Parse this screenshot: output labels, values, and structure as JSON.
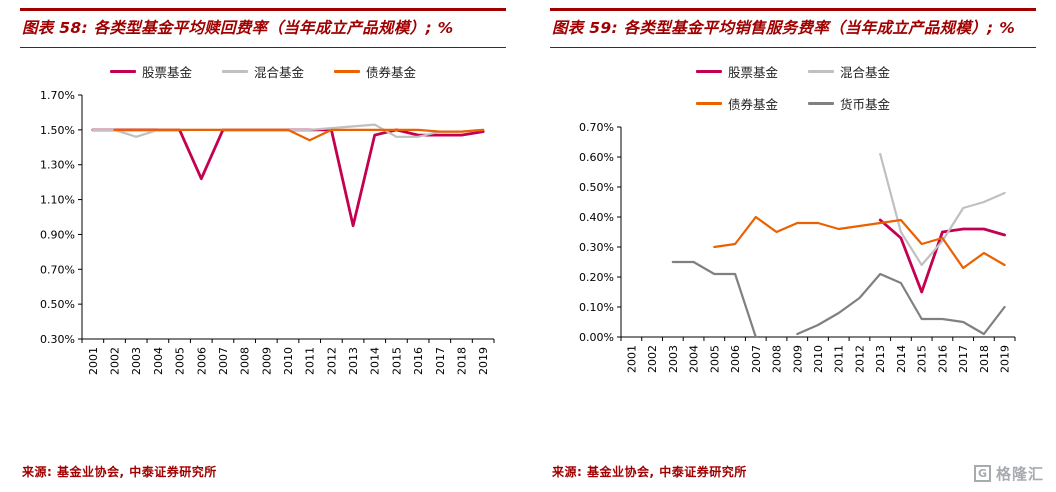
{
  "page": {
    "colors": {
      "accent": "#A00000",
      "stock": "#C40050",
      "hybrid": "#C0C0C0",
      "bond": "#EB6100",
      "money": "#808080"
    },
    "watermark": {
      "logo_letter": "G",
      "brand": "格隆汇"
    }
  },
  "panels": [
    {
      "title": "图表 58: 各类型基金平均赎回费率（当年成立产品规模）; %",
      "source": "来源: 基金业协会, 中泰证券研究所"
    },
    {
      "title": "图表 59: 各类型基金平均销售服务费率（当年成立产品规模）; %",
      "source": "来源: 基金业协会, 中泰证券研究所"
    }
  ],
  "chart_data": [
    {
      "type": "line",
      "title": "各类型基金平均赎回费率（当年成立产品规模）; %",
      "categories": [
        "2001",
        "2002",
        "2003",
        "2004",
        "2005",
        "2006",
        "2007",
        "2008",
        "2009",
        "2010",
        "2011",
        "2012",
        "2013",
        "2014",
        "2015",
        "2016",
        "2017",
        "2018",
        "2019"
      ],
      "series": [
        {
          "name": "股票基金",
          "color": "#C40050",
          "width": 2.8,
          "values": [
            1.5,
            1.5,
            1.5,
            1.5,
            1.5,
            1.22,
            1.5,
            1.5,
            1.5,
            1.5,
            1.5,
            1.5,
            0.95,
            1.47,
            1.5,
            1.47,
            1.47,
            1.47,
            1.49
          ]
        },
        {
          "name": "混合基金",
          "color": "#C0C0C0",
          "width": 2.2,
          "values": [
            1.5,
            1.5,
            1.46,
            1.5,
            1.5,
            1.5,
            1.5,
            1.5,
            1.5,
            1.5,
            1.5,
            1.51,
            1.52,
            1.53,
            1.46,
            1.46,
            1.49,
            1.49,
            1.5
          ]
        },
        {
          "name": "债券基金",
          "color": "#EB6100",
          "width": 2.2,
          "values": [
            null,
            1.5,
            1.5,
            1.5,
            1.5,
            1.5,
            1.5,
            1.5,
            1.5,
            1.5,
            1.44,
            1.5,
            1.5,
            1.5,
            1.5,
            1.5,
            1.49,
            1.49,
            1.5
          ]
        }
      ],
      "ylim": [
        0.3,
        1.7
      ],
      "ytick_step": 0.2,
      "y_format": "percent2",
      "grid": false,
      "legend_position": "top"
    },
    {
      "type": "line",
      "title": "各类型基金平均销售服务费率（当年成立产品规模）; %",
      "categories": [
        "2001",
        "2002",
        "2003",
        "2004",
        "2005",
        "2006",
        "2007",
        "2008",
        "2009",
        "2010",
        "2011",
        "2012",
        "2013",
        "2014",
        "2015",
        "2016",
        "2017",
        "2018",
        "2019"
      ],
      "series": [
        {
          "name": "股票基金",
          "color": "#C40050",
          "width": 2.8,
          "values": [
            null,
            null,
            null,
            null,
            null,
            null,
            null,
            null,
            null,
            null,
            null,
            null,
            0.39,
            0.33,
            0.15,
            0.35,
            0.36,
            0.36,
            0.34
          ]
        },
        {
          "name": "混合基金",
          "color": "#C0C0C0",
          "width": 2.2,
          "values": [
            null,
            null,
            null,
            null,
            null,
            null,
            null,
            null,
            null,
            null,
            null,
            null,
            0.61,
            0.35,
            0.24,
            0.32,
            0.43,
            0.45,
            0.48
          ]
        },
        {
          "name": "债券基金",
          "color": "#EB6100",
          "width": 2.2,
          "values": [
            null,
            null,
            null,
            null,
            0.3,
            0.31,
            0.4,
            0.35,
            0.38,
            0.38,
            0.36,
            0.37,
            0.38,
            0.39,
            0.31,
            0.33,
            0.23,
            0.28,
            0.24
          ]
        },
        {
          "name": "货币基金",
          "color": "#808080",
          "width": 2.2,
          "values": [
            null,
            null,
            0.25,
            0.25,
            0.21,
            0.21,
            0.0,
            null,
            0.01,
            0.04,
            0.08,
            0.13,
            0.21,
            0.18,
            0.06,
            0.06,
            0.05,
            0.01,
            0.1
          ]
        }
      ],
      "ylim": [
        0.0,
        0.7
      ],
      "ytick_step": 0.1,
      "y_format": "percent2",
      "grid": false,
      "legend_position": "top"
    }
  ]
}
